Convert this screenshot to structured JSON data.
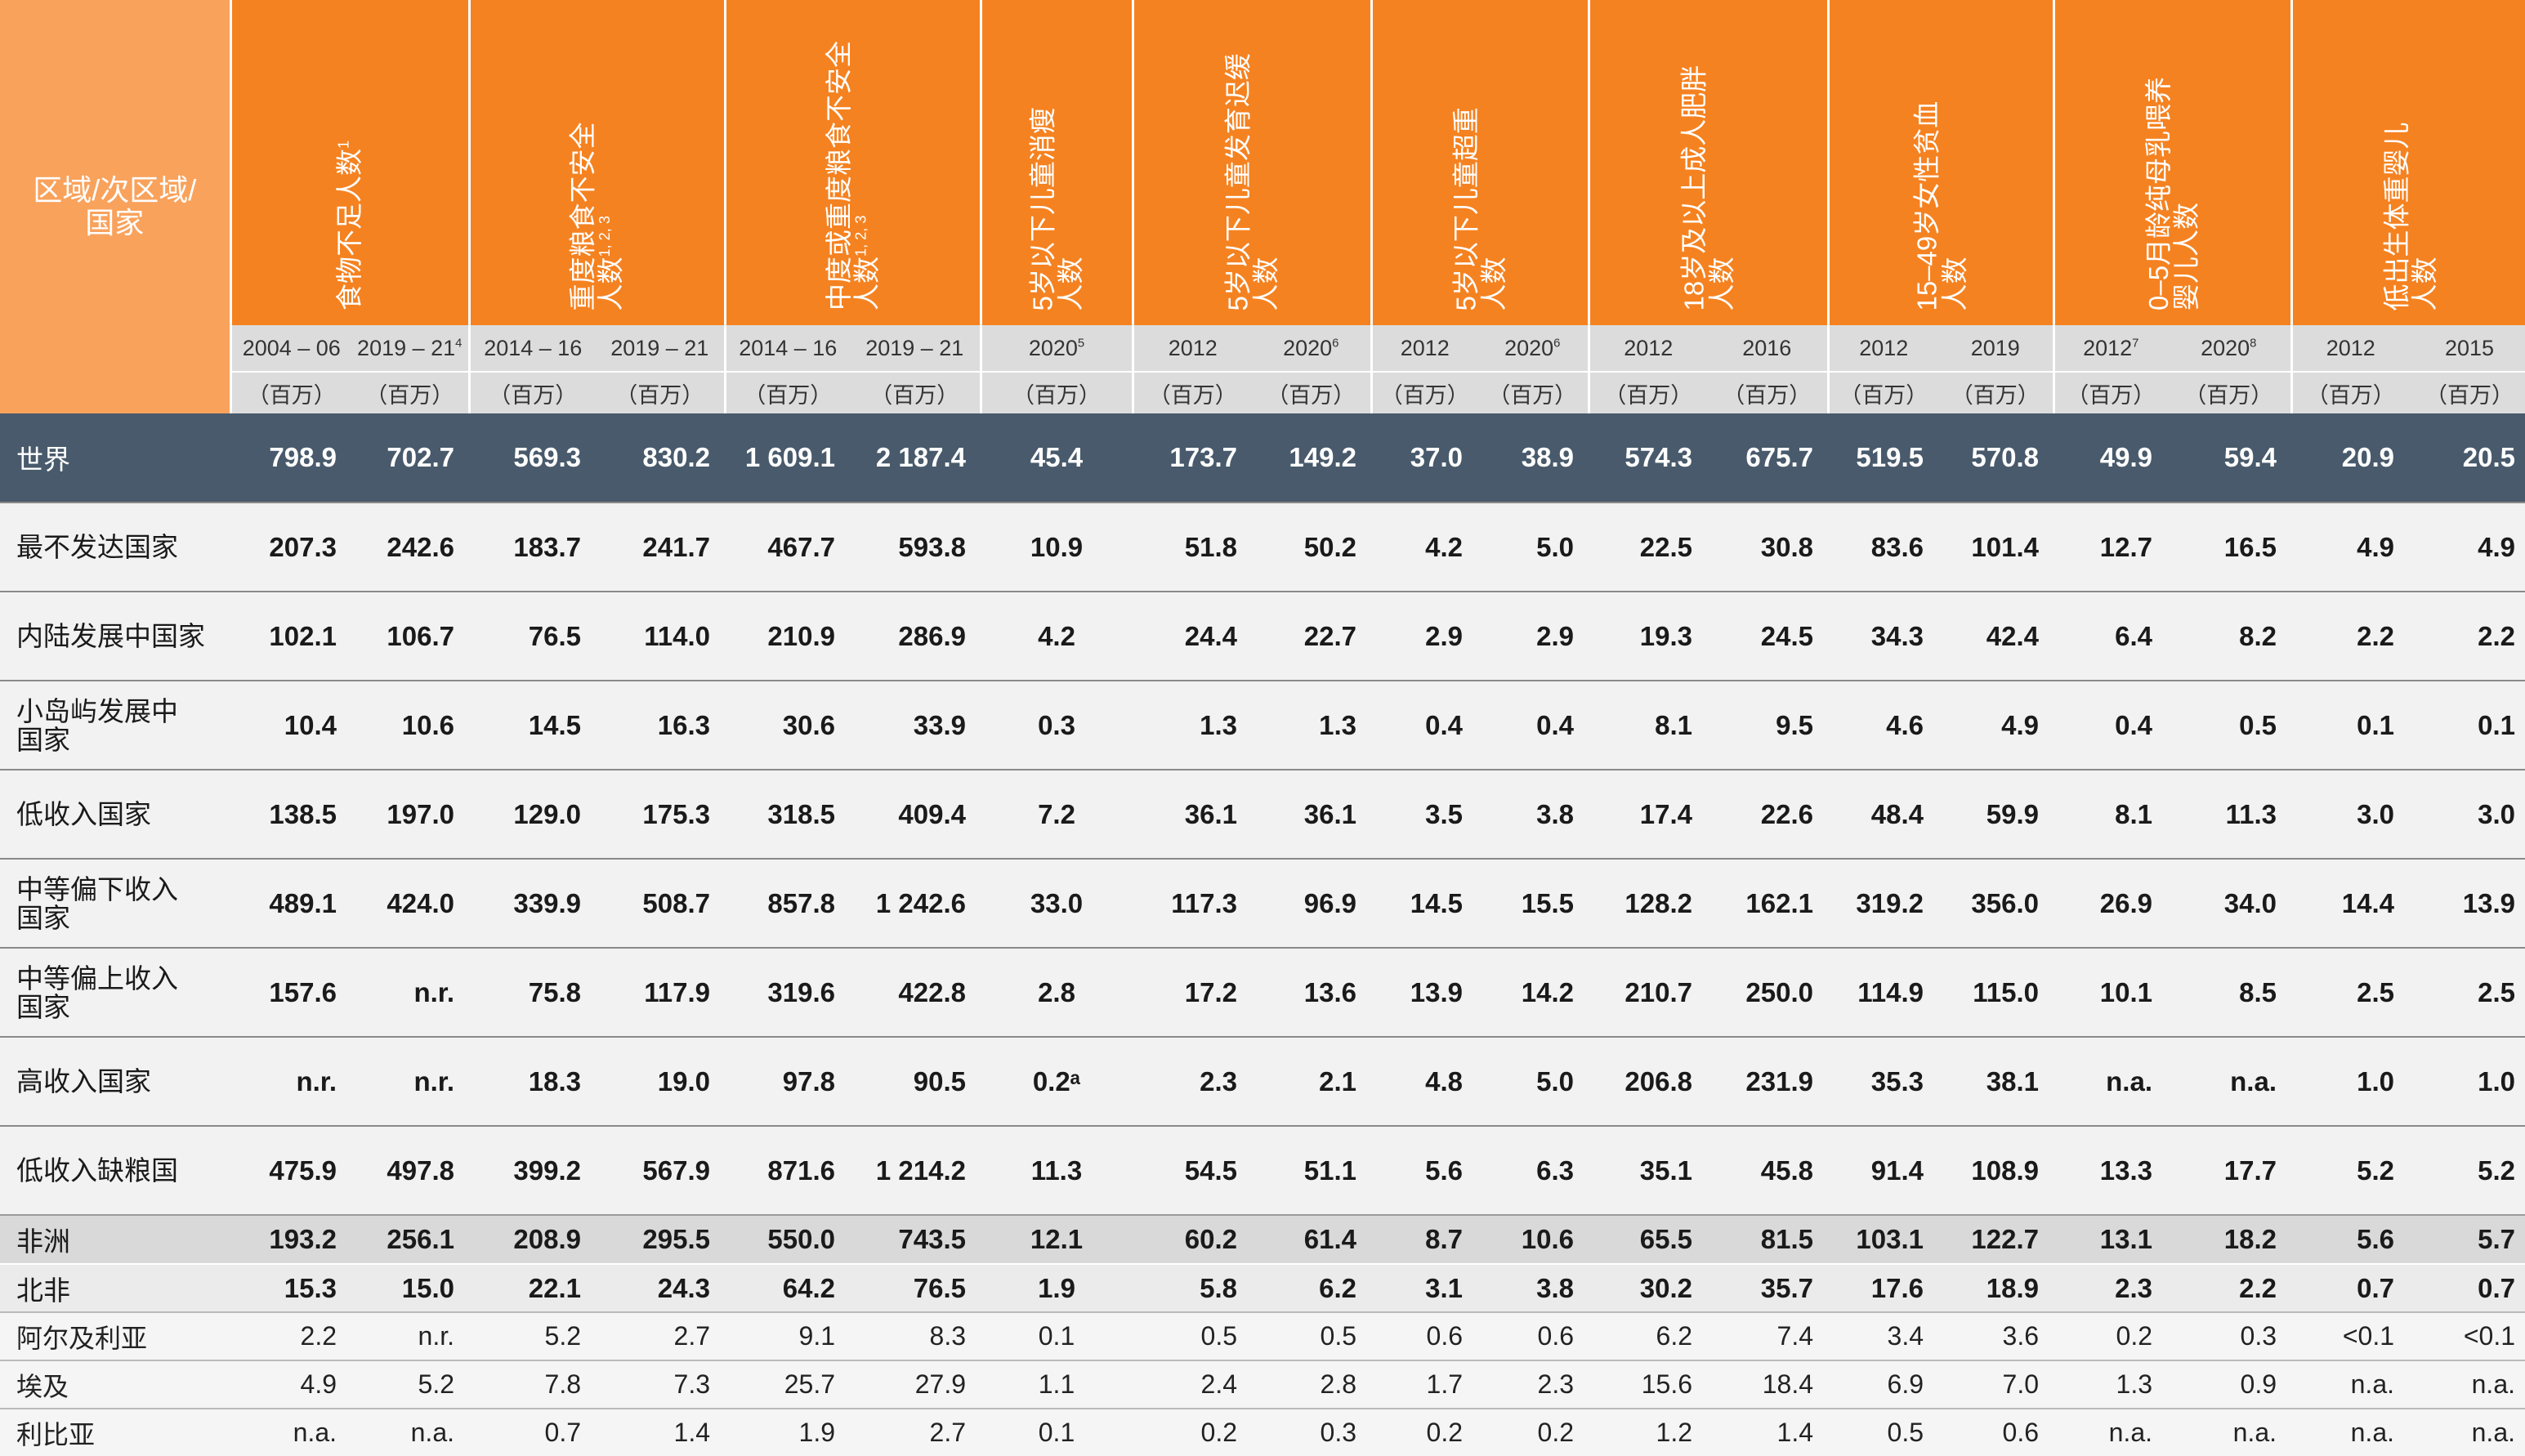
{
  "header": {
    "region_label": "区域/次区域/\n国家",
    "indicators": [
      {
        "label": "食物不足人数",
        "sup": "1",
        "years": [
          {
            "y": "2004 – 06",
            "s": ""
          },
          {
            "y": "2019 – 21",
            "s": "4"
          }
        ],
        "unit": "（百万）"
      },
      {
        "label": "重度粮食不安全\n人数",
        "sup": "1, 2, 3",
        "years": [
          {
            "y": "2014 – 16",
            "s": ""
          },
          {
            "y": "2019 – 21",
            "s": ""
          }
        ],
        "unit": "（百万）"
      },
      {
        "label": "中度或重度粮食不安全\n人数",
        "sup": "1, 2, 3",
        "years": [
          {
            "y": "2014 – 16",
            "s": ""
          },
          {
            "y": "2019 – 21",
            "s": ""
          }
        ],
        "unit": "（百万）"
      },
      {
        "label": "5岁以下儿童消瘦\n人数",
        "sup": "",
        "years": [
          {
            "y": "2020",
            "s": "5"
          }
        ],
        "unit": "（百万）"
      },
      {
        "label": "5岁以下儿童发育迟缓\n人数",
        "sup": "",
        "years": [
          {
            "y": "2012",
            "s": ""
          },
          {
            "y": "2020",
            "s": "6"
          }
        ],
        "unit": "（百万）"
      },
      {
        "label": "5岁以下儿童超重\n人数",
        "sup": "",
        "years": [
          {
            "y": "2012",
            "s": ""
          },
          {
            "y": "2020",
            "s": "6"
          }
        ],
        "unit": "（百万）"
      },
      {
        "label": "18岁及以上成人肥胖\n人数",
        "sup": "",
        "years": [
          {
            "y": "2012",
            "s": ""
          },
          {
            "y": "2016",
            "s": ""
          }
        ],
        "unit": "（百万）"
      },
      {
        "label": "15–49岁女性贫血\n人数",
        "sup": "",
        "years": [
          {
            "y": "2012",
            "s": ""
          },
          {
            "y": "2019",
            "s": ""
          }
        ],
        "unit": "（百万）"
      },
      {
        "label": "0–5月龄纯母乳喂养\n婴儿人数",
        "sup": "",
        "years": [
          {
            "y": "2012",
            "s": "7"
          },
          {
            "y": "2020",
            "s": "8"
          }
        ],
        "unit": "（百万）"
      },
      {
        "label": "低出生体重婴儿\n人数",
        "sup": "",
        "years": [
          {
            "y": "2012",
            "s": ""
          },
          {
            "y": "2015",
            "s": ""
          }
        ],
        "unit": "（百万）"
      }
    ]
  },
  "rows": [
    {
      "type": "world",
      "name": "世界",
      "values": [
        "798.9",
        "702.7",
        "569.3",
        "830.2",
        "1 609.1",
        "2 187.4",
        "45.4",
        "173.7",
        "149.2",
        "37.0",
        "38.9",
        "574.3",
        "675.7",
        "519.5",
        "570.8",
        "49.9",
        "59.4",
        "20.9",
        "20.5"
      ]
    },
    {
      "type": "group",
      "name": "最不发达国家",
      "values": [
        "207.3",
        "242.6",
        "183.7",
        "241.7",
        "467.7",
        "593.8",
        "10.9",
        "51.8",
        "50.2",
        "4.2",
        "5.0",
        "22.5",
        "30.8",
        "83.6",
        "101.4",
        "12.7",
        "16.5",
        "4.9",
        "4.9"
      ]
    },
    {
      "type": "group",
      "name": "内陆发展中国家",
      "values": [
        "102.1",
        "106.7",
        "76.5",
        "114.0",
        "210.9",
        "286.9",
        "4.2",
        "24.4",
        "22.7",
        "2.9",
        "2.9",
        "19.3",
        "24.5",
        "34.3",
        "42.4",
        "6.4",
        "8.2",
        "2.2",
        "2.2"
      ]
    },
    {
      "type": "group",
      "name": "小岛屿发展中\n国家",
      "values": [
        "10.4",
        "10.6",
        "14.5",
        "16.3",
        "30.6",
        "33.9",
        "0.3",
        "1.3",
        "1.3",
        "0.4",
        "0.4",
        "8.1",
        "9.5",
        "4.6",
        "4.9",
        "0.4",
        "0.5",
        "0.1",
        "0.1"
      ]
    },
    {
      "type": "group",
      "name": "低收入国家",
      "values": [
        "138.5",
        "197.0",
        "129.0",
        "175.3",
        "318.5",
        "409.4",
        "7.2",
        "36.1",
        "36.1",
        "3.5",
        "3.8",
        "17.4",
        "22.6",
        "48.4",
        "59.9",
        "8.1",
        "11.3",
        "3.0",
        "3.0"
      ]
    },
    {
      "type": "group",
      "name": "中等偏下收入\n国家",
      "values": [
        "489.1",
        "424.0",
        "339.9",
        "508.7",
        "857.8",
        "1 242.6",
        "33.0",
        "117.3",
        "96.9",
        "14.5",
        "15.5",
        "128.2",
        "162.1",
        "319.2",
        "356.0",
        "26.9",
        "34.0",
        "14.4",
        "13.9"
      ]
    },
    {
      "type": "group",
      "name": "中等偏上收入\n国家",
      "values": [
        "157.6",
        "n.r.",
        "75.8",
        "117.9",
        "319.6",
        "422.8",
        "2.8",
        "17.2",
        "13.6",
        "13.9",
        "14.2",
        "210.7",
        "250.0",
        "114.9",
        "115.0",
        "10.1",
        "8.5",
        "2.5",
        "2.5"
      ]
    },
    {
      "type": "group",
      "name": "高收入国家",
      "values": [
        "n.r.",
        "n.r.",
        "18.3",
        "19.0",
        "97.8",
        "90.5",
        "0.2ᵃ",
        "2.3",
        "2.1",
        "4.8",
        "5.0",
        "206.8",
        "231.9",
        "35.3",
        "38.1",
        "n.a.",
        "n.a.",
        "1.0",
        "1.0"
      ]
    },
    {
      "type": "group",
      "name": "低收入缺粮国",
      "values": [
        "475.9",
        "497.8",
        "399.2",
        "567.9",
        "871.6",
        "1 214.2",
        "11.3",
        "54.5",
        "51.1",
        "5.6",
        "6.3",
        "35.1",
        "45.8",
        "91.4",
        "108.9",
        "13.3",
        "17.7",
        "5.2",
        "5.2"
      ]
    },
    {
      "type": "region",
      "name": "非洲",
      "values": [
        "193.2",
        "256.1",
        "208.9",
        "295.5",
        "550.0",
        "743.5",
        "12.1",
        "60.2",
        "61.4",
        "8.7",
        "10.6",
        "65.5",
        "81.5",
        "103.1",
        "122.7",
        "13.1",
        "18.2",
        "5.6",
        "5.7"
      ]
    },
    {
      "type": "sub",
      "name": "北非",
      "values": [
        "15.3",
        "15.0",
        "22.1",
        "24.3",
        "64.2",
        "76.5",
        "1.9",
        "5.8",
        "6.2",
        "3.1",
        "3.8",
        "30.2",
        "35.7",
        "17.6",
        "18.9",
        "2.3",
        "2.2",
        "0.7",
        "0.7"
      ]
    },
    {
      "type": "country",
      "name": "阿尔及利亚",
      "values": [
        "2.2",
        "n.r.",
        "5.2",
        "2.7",
        "9.1",
        "8.3",
        "0.1",
        "0.5",
        "0.5",
        "0.6",
        "0.6",
        "6.2",
        "7.4",
        "3.4",
        "3.6",
        "0.2",
        "0.3",
        "<0.1",
        "<0.1"
      ]
    },
    {
      "type": "country",
      "name": "埃及",
      "values": [
        "4.9",
        "5.2",
        "7.8",
        "7.3",
        "25.7",
        "27.9",
        "1.1",
        "2.4",
        "2.8",
        "1.7",
        "2.3",
        "15.6",
        "18.4",
        "6.9",
        "7.0",
        "1.3",
        "0.9",
        "n.a.",
        "n.a."
      ]
    },
    {
      "type": "country",
      "name": "利比亚",
      "values": [
        "n.a.",
        "n.a.",
        "0.7",
        "1.4",
        "1.9",
        "2.7",
        "0.1",
        "0.2",
        "0.3",
        "0.2",
        "0.2",
        "1.2",
        "1.4",
        "0.5",
        "0.6",
        "n.a.",
        "n.a.",
        "n.a.",
        "n.a."
      ]
    }
  ]
}
